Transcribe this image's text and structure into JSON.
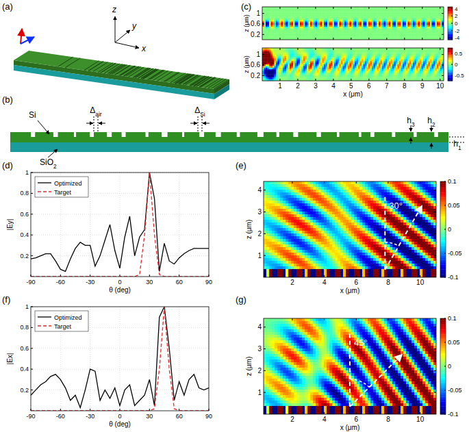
{
  "panel_labels": [
    "(a)",
    "(b)",
    "(c)",
    "(d)",
    "(e)",
    "(f)",
    "(g)"
  ],
  "diagram_a": {
    "axis_labels": [
      "x",
      "y",
      "z"
    ]
  },
  "diagram_b": {
    "material_labels": [
      {
        "base": "Si"
      },
      {
        "base": "SiO",
        "sub": "2"
      }
    ],
    "gap_labels": [
      {
        "base": "Δ",
        "sub": "air"
      },
      {
        "base": "Δ",
        "sub": "Si"
      }
    ],
    "height_labels": [
      {
        "base": "h",
        "sub": "3"
      },
      {
        "base": "h",
        "sub": "2"
      },
      {
        "base": "h",
        "sub": "1"
      }
    ]
  },
  "field_maps": [
    {
      "type": "field",
      "ylabel": "z (μm)",
      "xlim": [
        0,
        10.2
      ],
      "ylim": [
        0,
        1.25
      ],
      "xticks": [
        1,
        2,
        3,
        4,
        5,
        6,
        7,
        8,
        9,
        10
      ],
      "yticks": [
        0.2,
        0.6,
        1
      ],
      "tick_labels": "y",
      "colorbar": {
        "range": [
          -4.5,
          4.5
        ],
        "ticks": [
          -4,
          -2,
          0,
          2,
          4
        ]
      }
    },
    {
      "type": "field",
      "xlabel": "x (μm)",
      "ylabel": "z (μm)",
      "xlim": [
        0,
        10.2
      ],
      "ylim": [
        0,
        1.25
      ],
      "xticks": [
        1,
        2,
        3,
        4,
        5,
        6,
        7,
        8,
        9,
        10
      ],
      "yticks": [
        0.2,
        0.6,
        1
      ],
      "colorbar": {
        "range": [
          -0.75,
          0.75
        ],
        "ticks": [
          -0.5,
          0,
          0.5
        ]
      }
    },
    {
      "type": "field",
      "xlabel": "x (μm)",
      "ylabel": "z (μm)",
      "xlim": [
        0.2,
        11
      ],
      "ylim": [
        0,
        4.4
      ],
      "xticks": [
        2,
        4,
        6,
        8,
        10
      ],
      "yticks": [
        1,
        2,
        3,
        4
      ],
      "colorbar": {
        "range": [
          -0.1,
          0.1
        ],
        "ticks": [
          -0.1,
          -0.05,
          0,
          0.05,
          0.1
        ]
      },
      "annotation": "30°"
    },
    {
      "type": "field",
      "xlabel": "x (μm)",
      "ylabel": "z (μm)",
      "xlim": [
        0.2,
        11
      ],
      "ylim": [
        0,
        4.4
      ],
      "xticks": [
        2,
        4,
        6,
        8,
        10
      ],
      "yticks": [
        1,
        2,
        3,
        4
      ],
      "colorbar": {
        "range": [
          -0.1,
          0.1
        ],
        "ticks": [
          -0.1,
          -0.05,
          0,
          0.05,
          0.1
        ]
      },
      "annotation": "45°"
    }
  ],
  "chart_data": [
    {
      "type": "line",
      "xlabel": "θ (deg)",
      "ylabel": "|Ey|",
      "x": [
        -90,
        -85,
        -80,
        -75,
        -70,
        -65,
        -60,
        -55,
        -50,
        -45,
        -40,
        -35,
        -30,
        -25,
        -20,
        -15,
        -10,
        -5,
        0,
        5,
        10,
        15,
        20,
        25,
        30,
        35,
        40,
        45,
        50,
        55,
        60,
        65,
        70,
        75,
        80,
        85,
        90
      ],
      "xlim": [
        -90,
        90
      ],
      "ylim": [
        0,
        1
      ],
      "xticks": [
        -90,
        -60,
        -30,
        0,
        30,
        60,
        90
      ],
      "yticks": [
        0.2,
        0.4,
        0.6,
        0.8,
        1
      ],
      "grid": true,
      "legend": "upper left",
      "series": [
        {
          "name": "Optimized",
          "color": "#000000",
          "line_style": "solid",
          "values": [
            0.17,
            0.18,
            0.2,
            0.22,
            0.22,
            0.15,
            0.07,
            0.05,
            0.17,
            0.27,
            0.33,
            0.3,
            0.3,
            0.1,
            0.2,
            0.35,
            0.5,
            0.25,
            0.08,
            0.38,
            0.58,
            0.2,
            0.38,
            0.45,
            1,
            0.75,
            0.05,
            0.32,
            0.15,
            0.12,
            0.18,
            0.22,
            0.25,
            0.27,
            0.27,
            0.27,
            0.27
          ]
        },
        {
          "name": "Target",
          "color": "#e8262b",
          "line_style": "dashed",
          "values": [
            0,
            0,
            0,
            0,
            0,
            0,
            0,
            0,
            0,
            0,
            0,
            0,
            0,
            0,
            0,
            0,
            0,
            0,
            0,
            0,
            0,
            0,
            0.02,
            0.4,
            1,
            0.4,
            0.02,
            0,
            0,
            0,
            0,
            0,
            0,
            0,
            0,
            0,
            0
          ]
        }
      ]
    },
    {
      "type": "line",
      "xlabel": "θ (deg)",
      "ylabel": "|Ex|",
      "x": [
        -90,
        -85,
        -80,
        -75,
        -70,
        -65,
        -60,
        -55,
        -50,
        -45,
        -40,
        -35,
        -30,
        -25,
        -20,
        -15,
        -10,
        -5,
        0,
        5,
        10,
        15,
        20,
        25,
        30,
        35,
        40,
        45,
        50,
        55,
        60,
        65,
        70,
        75,
        80,
        85,
        90
      ],
      "xlim": [
        -90,
        90
      ],
      "ylim": [
        0,
        1
      ],
      "xticks": [
        -90,
        -60,
        -30,
        0,
        30,
        60,
        90
      ],
      "yticks": [
        0.2,
        0.4,
        0.6,
        0.8,
        1
      ],
      "grid": true,
      "legend": "upper left",
      "series": [
        {
          "name": "Optimized",
          "color": "#000000",
          "line_style": "solid",
          "values": [
            0.15,
            0.2,
            0.25,
            0.28,
            0.33,
            0.35,
            0.3,
            0.22,
            0.1,
            0.15,
            0.03,
            0.2,
            0.4,
            0.38,
            0.1,
            0.2,
            0.12,
            0.22,
            0.05,
            0.2,
            0.25,
            0.05,
            0.1,
            0.15,
            0.3,
            0.05,
            0.9,
            1,
            0.6,
            0.1,
            0.28,
            0.15,
            0.3,
            0.35,
            0.22,
            0.2,
            0.22
          ]
        },
        {
          "name": "Target",
          "color": "#e8262b",
          "line_style": "dashed",
          "values": [
            0,
            0,
            0,
            0,
            0,
            0,
            0,
            0,
            0,
            0,
            0,
            0,
            0,
            0,
            0,
            0,
            0,
            0,
            0,
            0,
            0,
            0,
            0,
            0,
            0,
            0.02,
            0.4,
            1,
            0.4,
            0.02,
            0,
            0,
            0,
            0,
            0,
            0,
            0
          ]
        }
      ]
    }
  ]
}
